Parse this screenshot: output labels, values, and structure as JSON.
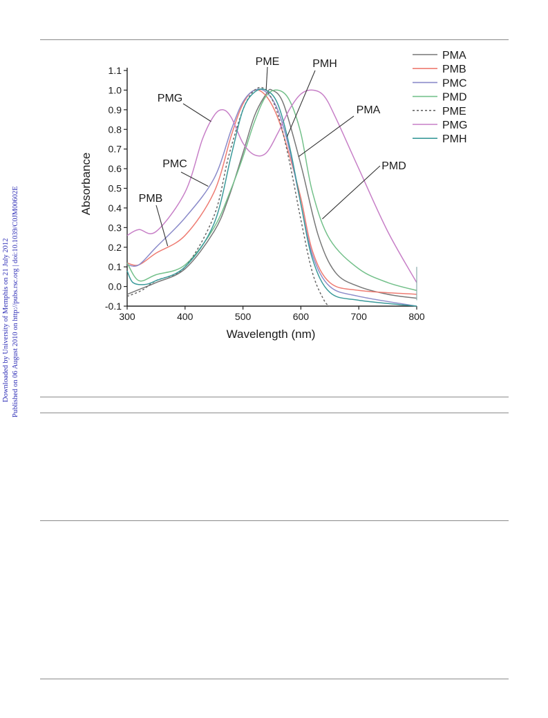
{
  "sidebar": {
    "line1": "Downloaded by University of Memphis on 21 July 2012",
    "line2": "Published on 06 August 2010 on http://pubs.rsc.org | doi:10.1039/C0JM00602E"
  },
  "chart_data": {
    "type": "line",
    "title": "",
    "xlabel": "Wavelength (nm)",
    "ylabel": "Absorbance",
    "xlim": [
      300,
      800
    ],
    "ylim": [
      -0.1,
      1.1
    ],
    "xticks": [
      300,
      400,
      500,
      600,
      700,
      800
    ],
    "yticks": [
      1.1,
      1.0,
      0.9,
      0.8,
      0.7,
      0.6,
      0.5,
      0.4,
      0.3,
      0.2,
      0.1,
      0.0,
      -0.1
    ],
    "ytick_labels": [
      "1.1",
      "1.0",
      "0.9",
      "0.8",
      "0.7",
      "0.6",
      "0.5",
      "0.4",
      "0.3",
      "0.2",
      "0.1",
      "0.0",
      "-0.1"
    ],
    "grid": false,
    "legend_position": "top-right",
    "series": [
      {
        "name": "PMA",
        "color": "#777777",
        "dash": "solid",
        "x": [
          300,
          325,
          350,
          400,
          450,
          475,
          500,
          520,
          540,
          550,
          570,
          600,
          630,
          660,
          700,
          750,
          800
        ],
        "y": [
          -0.04,
          -0.01,
          0.02,
          0.09,
          0.28,
          0.45,
          0.68,
          0.87,
          0.98,
          1.0,
          0.93,
          0.62,
          0.26,
          0.07,
          0.0,
          -0.04,
          -0.06
        ]
      },
      {
        "name": "PMB",
        "color": "#ee7b72",
        "dash": "solid",
        "x": [
          300,
          320,
          350,
          400,
          450,
          480,
          500,
          520,
          540,
          560,
          580,
          600,
          620,
          650,
          700,
          800
        ],
        "y": [
          0.12,
          0.11,
          0.17,
          0.26,
          0.48,
          0.77,
          0.93,
          1.0,
          0.97,
          0.86,
          0.67,
          0.45,
          0.18,
          0.02,
          -0.02,
          -0.04
        ]
      },
      {
        "name": "PMC",
        "color": "#8a8ac9",
        "dash": "solid",
        "x": [
          300,
          320,
          350,
          400,
          450,
          480,
          500,
          520,
          540,
          560,
          580,
          600,
          620,
          650,
          700,
          800
        ],
        "y": [
          0.11,
          0.11,
          0.2,
          0.35,
          0.55,
          0.8,
          0.94,
          1.0,
          0.99,
          0.9,
          0.7,
          0.42,
          0.16,
          0.0,
          -0.05,
          -0.1
        ]
      },
      {
        "name": "PMD",
        "color": "#73c08a",
        "dash": "solid",
        "x": [
          300,
          320,
          350,
          400,
          450,
          480,
          500,
          520,
          540,
          560,
          580,
          600,
          620,
          650,
          700,
          750,
          800
        ],
        "y": [
          0.12,
          0.03,
          0.06,
          0.11,
          0.3,
          0.5,
          0.66,
          0.84,
          0.97,
          1.0,
          0.95,
          0.78,
          0.48,
          0.24,
          0.09,
          0.02,
          -0.02
        ]
      },
      {
        "name": "PME",
        "color": "#666666",
        "dash": "dashed",
        "x": [
          300,
          325,
          350,
          400,
          450,
          475,
          500,
          520,
          540,
          560,
          580,
          600,
          620,
          640,
          650
        ],
        "y": [
          -0.05,
          -0.02,
          0.03,
          0.1,
          0.36,
          0.66,
          0.9,
          1.0,
          1.0,
          0.88,
          0.64,
          0.34,
          0.07,
          -0.07,
          -0.1
        ]
      },
      {
        "name": "PMG",
        "color": "#c77fc7",
        "dash": "solid",
        "x": [
          300,
          320,
          350,
          400,
          430,
          450,
          465,
          480,
          500,
          520,
          540,
          560,
          580,
          600,
          620,
          640,
          660,
          700,
          750,
          800
        ],
        "y": [
          0.26,
          0.29,
          0.28,
          0.48,
          0.75,
          0.87,
          0.9,
          0.86,
          0.73,
          0.67,
          0.68,
          0.78,
          0.9,
          0.98,
          1.0,
          0.97,
          0.86,
          0.6,
          0.28,
          0.02
        ]
      },
      {
        "name": "PMH",
        "color": "#3a9a9a",
        "dash": "solid",
        "x": [
          300,
          310,
          330,
          350,
          400,
          450,
          480,
          500,
          520,
          540,
          560,
          580,
          600,
          620,
          650,
          700,
          800
        ],
        "y": [
          0.08,
          0.02,
          0.01,
          0.03,
          0.1,
          0.32,
          0.67,
          0.9,
          0.99,
          1.0,
          0.93,
          0.72,
          0.42,
          0.14,
          -0.03,
          -0.07,
          -0.1
        ]
      }
    ],
    "annotations": [
      "PME",
      "PMH",
      "PMG",
      "PMA",
      "PMC",
      "PMD",
      "PMB"
    ]
  }
}
